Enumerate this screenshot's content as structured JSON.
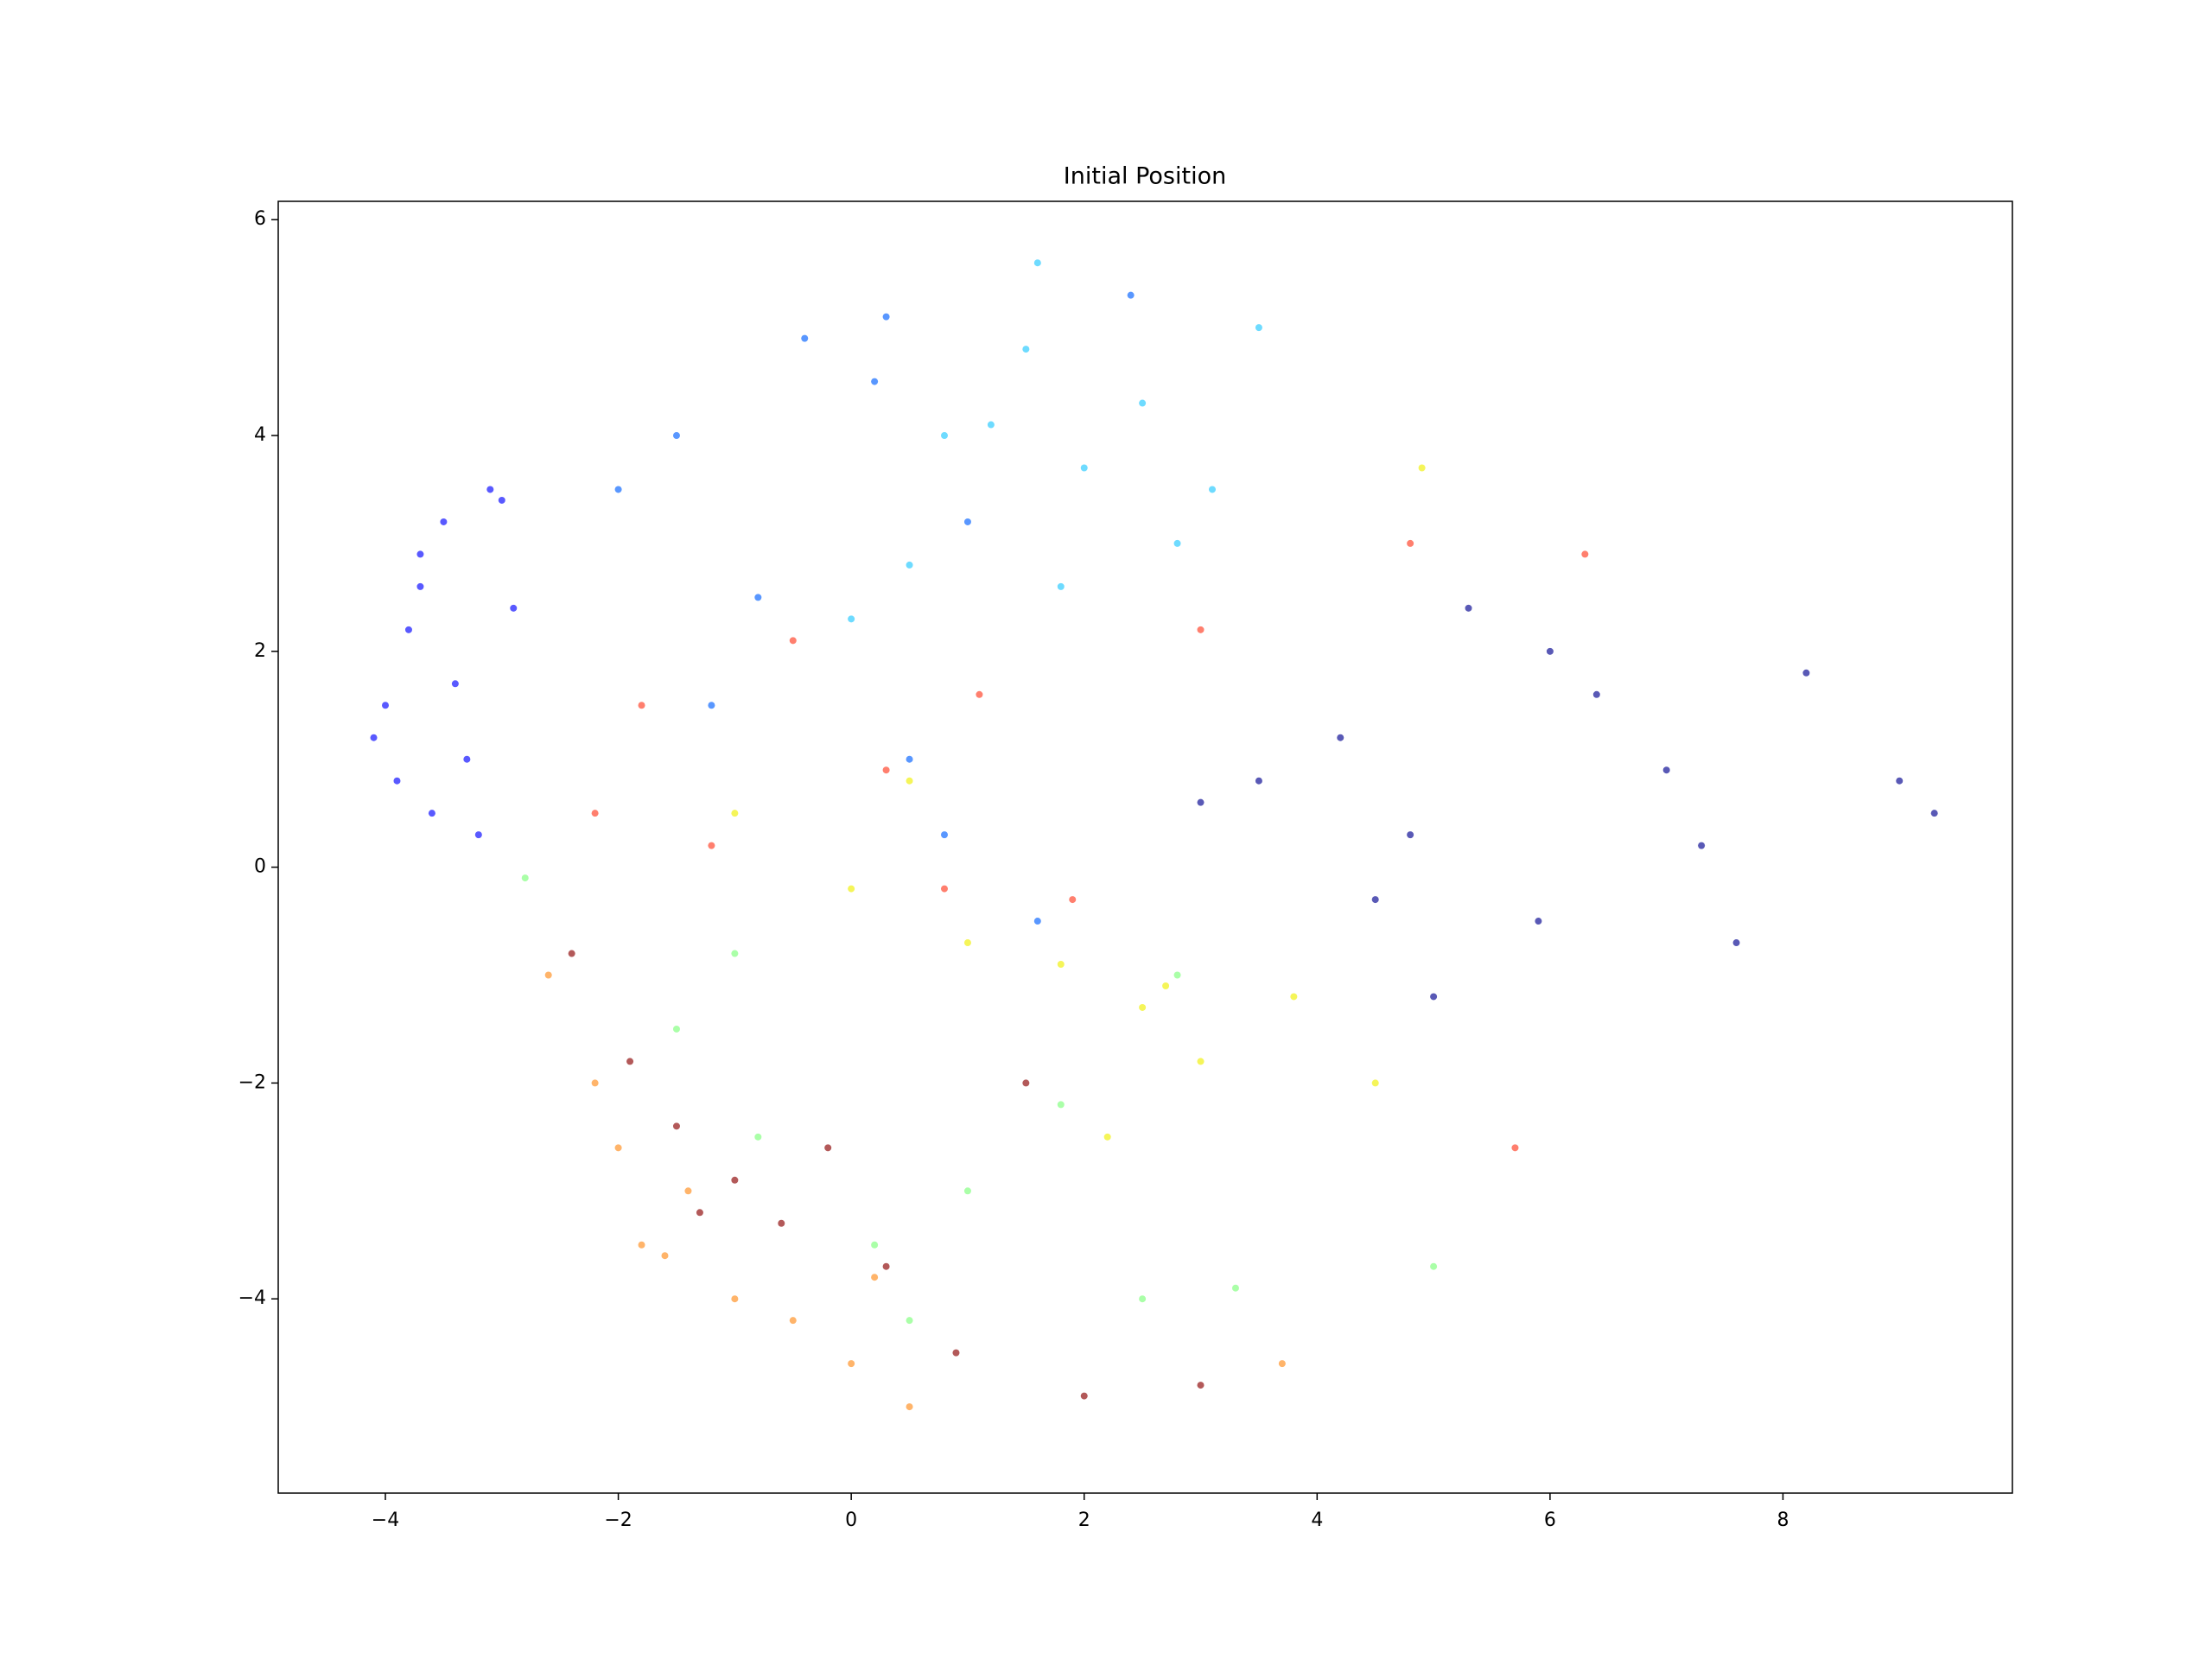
{
  "chart_data": {
    "type": "scatter",
    "title": "Initial Position",
    "xlim": [
      -4.92,
      9.97
    ],
    "ylim": [
      -5.8,
      6.17
    ],
    "xticks": [
      {
        "value": -4,
        "label": "−4"
      },
      {
        "value": -2,
        "label": "−2"
      },
      0,
      2,
      4,
      6,
      8
    ],
    "yticks": [
      {
        "value": -4,
        "label": "−4"
      },
      {
        "value": -2,
        "label": "−2"
      },
      0,
      2,
      4,
      6
    ],
    "series": [
      {
        "color": "#00008f",
        "x": [
          3.5,
          4.2,
          4.8,
          5.3,
          5.9,
          6.4,
          7.0,
          7.6,
          8.2,
          9.0,
          9.3,
          5.0,
          6.0,
          4.5,
          7.3,
          3.0
        ],
        "values": [
          0.8,
          1.2,
          0.3,
          2.4,
          -0.5,
          1.6,
          0.9,
          -0.7,
          1.8,
          0.8,
          0.5,
          -1.2,
          2.0,
          -0.3,
          0.2,
          0.6
        ]
      },
      {
        "color": "#0000ff",
        "x": [
          -4.0,
          -3.8,
          -3.7,
          -3.5,
          -3.3,
          -3.9,
          -3.6,
          -3.1,
          -2.9,
          -3.4,
          -4.1,
          -3.2,
          -3.7,
          -3.0
        ],
        "values": [
          1.5,
          2.2,
          2.9,
          3.2,
          1.0,
          0.8,
          0.5,
          3.5,
          2.4,
          1.7,
          1.2,
          0.3,
          2.6,
          3.4
        ]
      },
      {
        "color": "#0060ff",
        "x": [
          -1.5,
          -0.8,
          0.2,
          0.5,
          1.0,
          -1.2,
          0.8,
          1.6,
          -0.4,
          2.4,
          -2.0,
          0.3
        ],
        "values": [
          4.0,
          2.5,
          4.5,
          1.0,
          3.2,
          1.5,
          0.3,
          -0.5,
          4.9,
          5.3,
          3.5,
          5.1
        ]
      },
      {
        "color": "#20c8ff",
        "x": [
          0.5,
          1.2,
          2.0,
          2.8,
          0.0,
          1.5,
          3.1,
          1.8,
          0.8,
          2.5,
          1.6,
          3.5
        ],
        "values": [
          2.8,
          4.1,
          3.7,
          3.0,
          2.3,
          4.8,
          3.5,
          2.6,
          4.0,
          4.3,
          5.6,
          5.0
        ]
      },
      {
        "color": "#7dff7a",
        "x": [
          -2.8,
          -1.5,
          -0.8,
          0.2,
          1.0,
          1.8,
          2.5,
          3.3,
          -1.0,
          0.5,
          2.8,
          5.0
        ],
        "values": [
          -0.1,
          -1.5,
          -2.5,
          -3.5,
          -3.0,
          -2.2,
          -4.0,
          -3.9,
          -0.8,
          -4.2,
          -1.0,
          -3.7
        ]
      },
      {
        "color": "#f0f000",
        "x": [
          -1.0,
          0.0,
          1.0,
          1.8,
          2.5,
          3.0,
          3.8,
          4.5,
          0.5,
          2.2,
          4.9,
          2.7
        ],
        "values": [
          0.5,
          -0.2,
          -0.7,
          -0.9,
          -1.3,
          -1.8,
          -1.2,
          -2.0,
          0.8,
          -2.5,
          3.7,
          -1.1
        ]
      },
      {
        "color": "#ff8c1a",
        "x": [
          -2.6,
          -2.2,
          -1.8,
          -1.4,
          -1.0,
          -0.5,
          0.0,
          0.5,
          -2.0,
          0.2,
          3.7,
          -1.6
        ],
        "values": [
          -1.0,
          -2.0,
          -3.5,
          -3.0,
          -4.0,
          -4.2,
          -4.6,
          -5.0,
          -2.6,
          -3.8,
          -4.6,
          -3.6
        ]
      },
      {
        "color": "#ff3a20",
        "x": [
          -1.8,
          -1.2,
          -0.5,
          0.3,
          1.1,
          1.9,
          -2.2,
          3.0,
          4.8,
          6.3,
          5.7,
          0.8
        ],
        "values": [
          1.5,
          0.2,
          2.1,
          0.9,
          1.6,
          -0.3,
          0.5,
          2.2,
          3.0,
          2.9,
          -2.6,
          -0.2
        ]
      },
      {
        "color": "#8b0000",
        "x": [
          -2.4,
          -1.9,
          -1.5,
          -1.0,
          -0.6,
          -0.2,
          0.3,
          0.9,
          1.5,
          -1.3,
          2.0,
          3.0
        ],
        "values": [
          -0.8,
          -1.8,
          -2.4,
          -2.9,
          -3.3,
          -2.6,
          -3.7,
          -4.5,
          -2.0,
          -3.2,
          -4.9,
          -4.8
        ]
      }
    ]
  }
}
